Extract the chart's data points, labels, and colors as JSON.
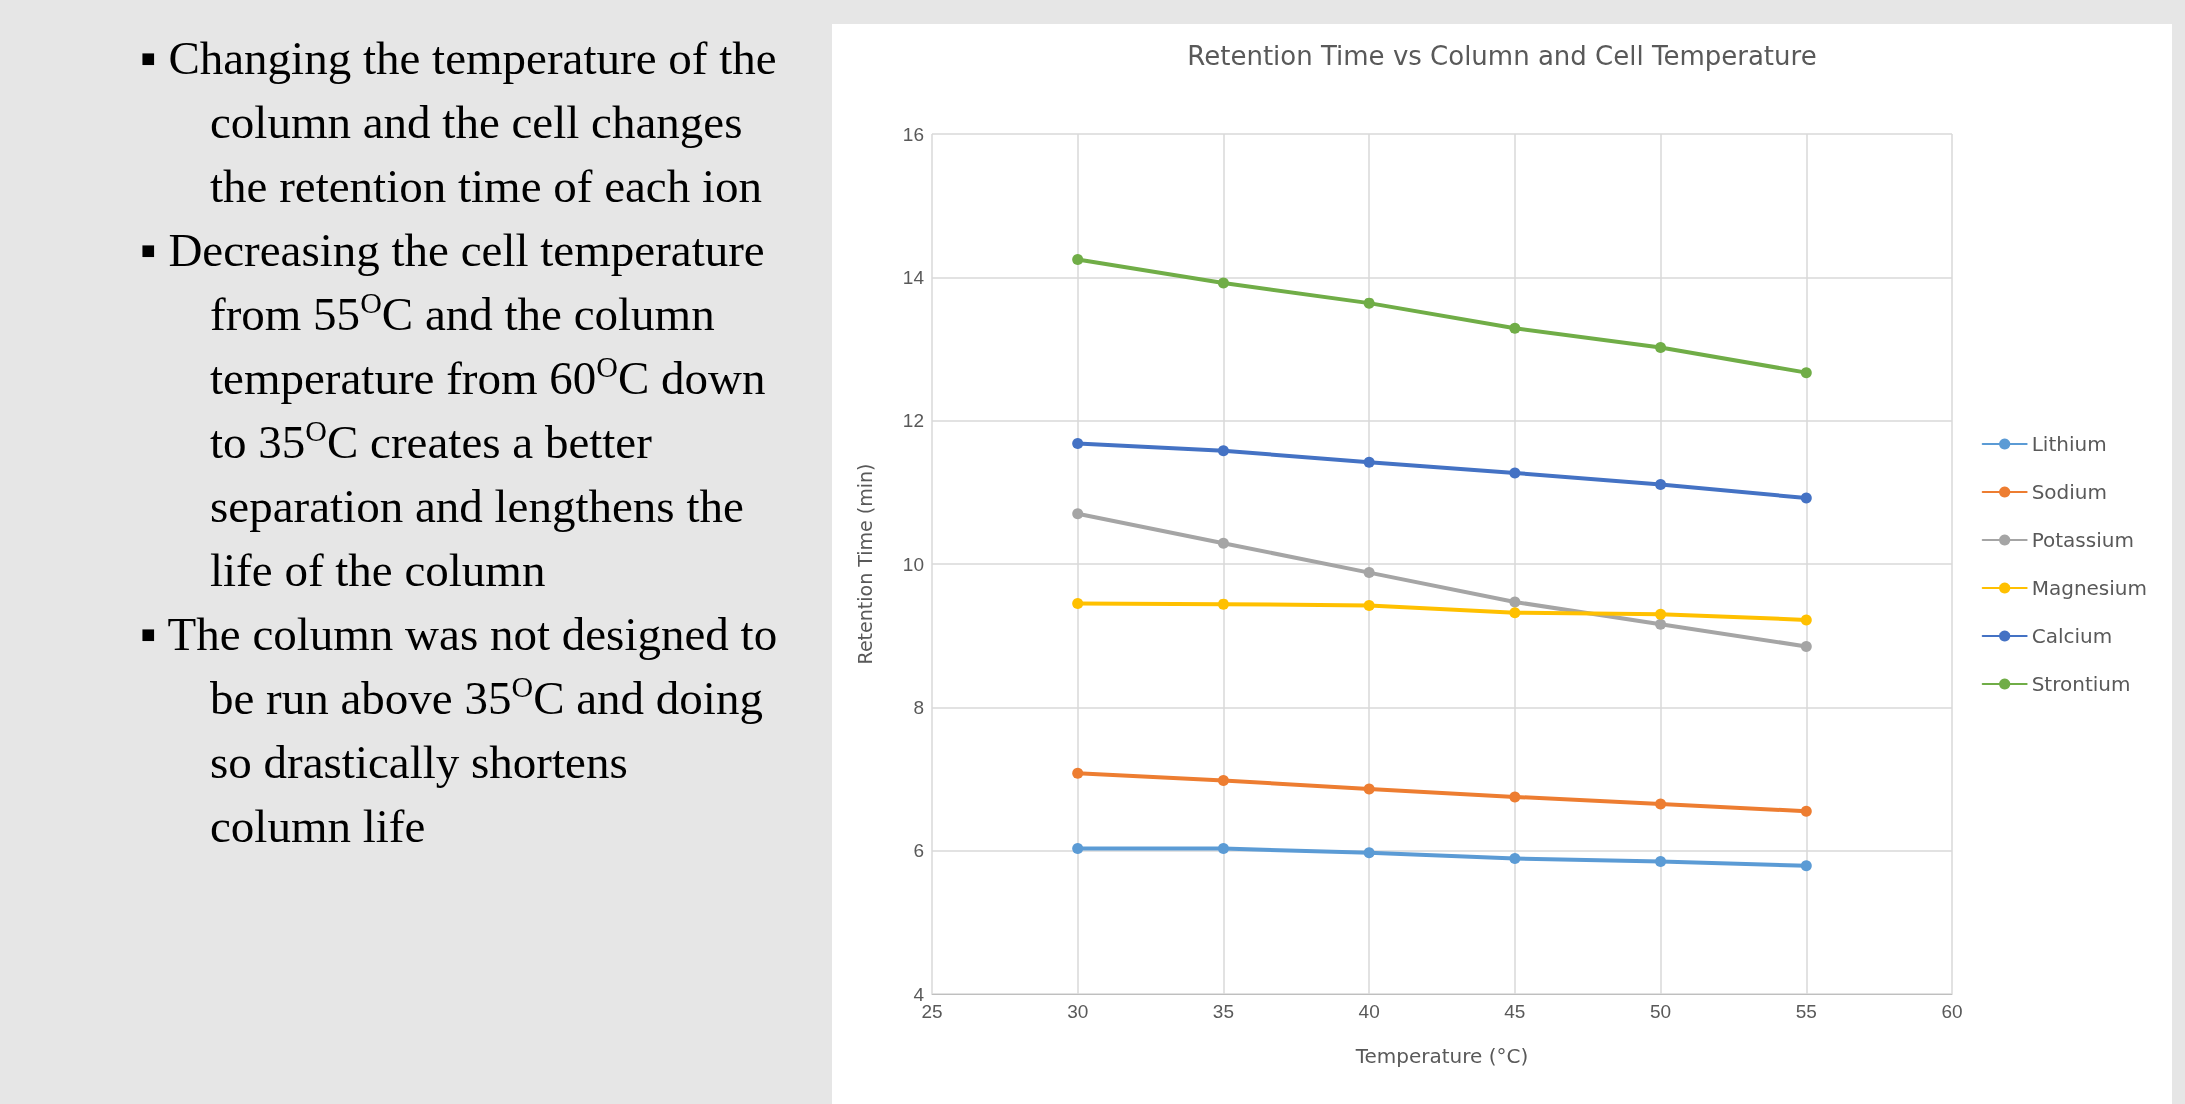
{
  "chart_data": {
    "type": "line",
    "title": "Retention Time vs Column and Cell Temperature",
    "xlabel": "Temperature (°C)",
    "ylabel": "Retention Time (min)",
    "x": [
      30,
      35,
      40,
      45,
      50,
      55
    ],
    "series": [
      {
        "name": "Lithium",
        "color": "#5b9bd5",
        "values": [
          6.03,
          6.03,
          5.97,
          5.89,
          5.85,
          5.79
        ]
      },
      {
        "name": "Sodium",
        "color": "#ed7d31",
        "values": [
          7.08,
          6.98,
          6.86,
          6.75,
          6.65,
          6.55
        ]
      },
      {
        "name": "Potassium",
        "color": "#a5a5a5",
        "values": [
          10.7,
          10.29,
          9.88,
          9.47,
          9.16,
          8.85
        ]
      },
      {
        "name": "Magnesium",
        "color": "#ffc000",
        "values": [
          9.45,
          9.44,
          9.42,
          9.32,
          9.3,
          9.22
        ]
      },
      {
        "name": "Calcium",
        "color": "#4472c4",
        "values": [
          11.68,
          11.58,
          11.42,
          11.27,
          11.11,
          10.92
        ]
      },
      {
        "name": "Strontium",
        "color": "#70ad47",
        "values": [
          14.25,
          13.92,
          13.64,
          13.29,
          13.02,
          12.67
        ]
      }
    ],
    "xlim": [
      25,
      60
    ],
    "xticks": [
      25,
      30,
      35,
      40,
      45,
      50,
      55,
      60
    ],
    "ylim": [
      4,
      16
    ],
    "yticks": [
      4,
      6,
      8,
      10,
      12,
      14,
      16
    ],
    "grid": true,
    "legend": "right",
    "marker": "circle",
    "line_style": "solid",
    "annotations": [
      "▪ Changing the temperature of the column and the cell changes the retention time of each ion",
      "▪ Decreasing the cell temperature from 55$^{O}$C and the column temperature from 60$^{O}$C down to 35$^{O}$C creates a better separation and lengthens the life of the column",
      "▪ The column was not designed to be run above 35$^{O}$C and doing so drastically shortens column life"
    ]
  }
}
